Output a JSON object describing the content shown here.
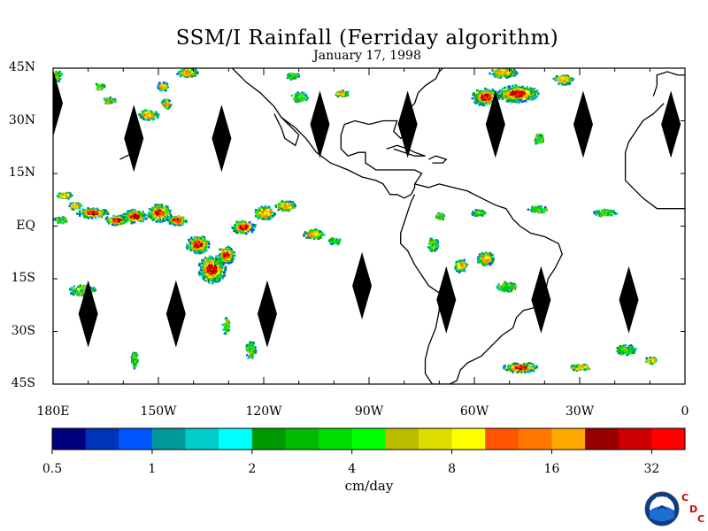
{
  "title": "SSM/I Rainfall (Ferriday algorithm)",
  "subtitle": "January 17, 1998",
  "map": {
    "lon_range": [
      180,
      360
    ],
    "lat_range": [
      -45,
      45
    ],
    "y_ticks": [
      {
        "lat": 45,
        "label": "45N"
      },
      {
        "lat": 30,
        "label": "30N"
      },
      {
        "lat": 15,
        "label": "15N"
      },
      {
        "lat": 0,
        "label": "EQ"
      },
      {
        "lat": -15,
        "label": "15S"
      },
      {
        "lat": -30,
        "label": "30S"
      },
      {
        "lat": -45,
        "label": "45S"
      }
    ],
    "x_ticks": [
      {
        "lon": 180,
        "label": "180E"
      },
      {
        "lon": 210,
        "label": "150W"
      },
      {
        "lon": 240,
        "label": "120W"
      },
      {
        "lon": 270,
        "label": "90W"
      },
      {
        "lon": 300,
        "label": "60W"
      },
      {
        "lon": 330,
        "label": "30W"
      },
      {
        "lon": 360,
        "label": "0"
      }
    ],
    "orbit_gaps_nh": [
      [
        180,
        35
      ],
      [
        203,
        25
      ],
      [
        228,
        25
      ],
      [
        256,
        29
      ],
      [
        281,
        29
      ],
      [
        306,
        29
      ],
      [
        331,
        29
      ],
      [
        356,
        29
      ]
    ],
    "orbit_gaps_sh": [
      [
        190,
        -25
      ],
      [
        215,
        -25
      ],
      [
        241,
        -25
      ],
      [
        268,
        -17
      ],
      [
        292,
        -21
      ],
      [
        319,
        -21
      ],
      [
        344,
        -21
      ]
    ],
    "rain_clusters": [
      [
        183,
        9,
        5,
        2,
        2
      ],
      [
        186,
        6,
        4,
        2,
        2
      ],
      [
        191,
        4,
        9,
        3,
        3
      ],
      [
        198,
        2,
        7,
        3,
        3
      ],
      [
        203,
        3,
        7,
        4,
        3
      ],
      [
        210,
        4,
        7,
        5,
        3
      ],
      [
        215,
        2,
        6,
        3,
        3
      ],
      [
        221,
        -5,
        7,
        5,
        3
      ],
      [
        225,
        -12,
        8,
        8,
        4
      ],
      [
        229,
        -8,
        5,
        5,
        3
      ],
      [
        234,
        0,
        7,
        4,
        3
      ],
      [
        240,
        4,
        6,
        4,
        2
      ],
      [
        246,
        6,
        6,
        3,
        2
      ],
      [
        254,
        -2,
        6,
        3,
        2
      ],
      [
        260,
        -4,
        4,
        2,
        1
      ],
      [
        188,
        -18,
        8,
        3,
        1
      ],
      [
        182,
        2,
        4,
        2,
        1
      ],
      [
        212,
        35,
        3,
        3,
        2
      ],
      [
        211,
        40,
        3,
        3,
        2
      ],
      [
        218,
        44,
        6,
        3,
        2
      ],
      [
        207,
        32,
        6,
        3,
        2
      ],
      [
        196,
        36,
        4,
        2,
        1
      ],
      [
        193,
        40,
        3,
        2,
        1
      ],
      [
        181,
        43,
        3,
        3,
        1
      ],
      [
        312,
        38,
        12,
        5,
        3
      ],
      [
        303,
        37,
        8,
        5,
        3
      ],
      [
        308,
        44,
        8,
        3,
        2
      ],
      [
        325,
        42,
        6,
        3,
        2
      ],
      [
        318,
        25,
        3,
        3,
        1
      ],
      [
        303,
        -9,
        5,
        4,
        2
      ],
      [
        296,
        -11,
        4,
        4,
        2
      ],
      [
        288,
        -5,
        3,
        4,
        1
      ],
      [
        309,
        -17,
        6,
        3,
        1
      ],
      [
        318,
        5,
        6,
        2,
        1
      ],
      [
        337,
        4,
        7,
        2,
        1
      ],
      [
        301,
        4,
        4,
        2,
        1
      ],
      [
        313,
        -40,
        10,
        3,
        3
      ],
      [
        330,
        -40,
        6,
        2,
        2
      ],
      [
        343,
        -35,
        6,
        3,
        1
      ],
      [
        350,
        -38,
        4,
        2,
        2
      ],
      [
        250,
        37,
        5,
        3,
        1
      ],
      [
        262,
        38,
        4,
        2,
        2
      ],
      [
        290,
        3,
        3,
        2,
        1
      ],
      [
        248,
        43,
        4,
        2,
        1
      ],
      [
        236,
        -35,
        3,
        5,
        1
      ],
      [
        203,
        -38,
        2,
        5,
        1
      ],
      [
        229,
        -28,
        2,
        5,
        1
      ]
    ],
    "coastlines": {
      "north_america": [
        [
          231,
          45
        ],
        [
          235,
          41
        ],
        [
          239,
          38
        ],
        [
          243,
          34
        ],
        [
          245,
          31
        ],
        [
          249,
          28
        ],
        [
          252,
          25
        ],
        [
          255,
          21
        ],
        [
          259,
          18
        ],
        [
          264,
          16
        ],
        [
          268,
          14
        ],
        [
          272,
          13
        ],
        [
          274,
          12
        ],
        [
          276,
          9
        ],
        [
          278,
          9
        ],
        [
          280,
          8
        ],
        [
          282,
          9
        ],
        [
          283,
          11
        ],
        [
          283,
          12
        ],
        [
          285,
          15
        ],
        [
          283,
          16
        ],
        [
          272,
          16
        ],
        [
          269,
          18
        ],
        [
          269,
          21
        ],
        [
          267,
          21
        ],
        [
          264,
          20
        ],
        [
          262,
          22
        ],
        [
          262,
          26
        ],
        [
          263,
          29
        ],
        [
          266,
          30
        ],
        [
          270,
          29
        ],
        [
          274,
          30
        ],
        [
          278,
          30
        ],
        [
          277,
          27
        ],
        [
          279,
          25
        ],
        [
          280,
          26
        ],
        [
          280,
          28
        ],
        [
          279,
          31
        ],
        [
          281,
          33
        ],
        [
          283,
          35
        ],
        [
          284,
          38
        ],
        [
          286,
          40
        ],
        [
          289,
          42
        ],
        [
          290,
          44
        ],
        [
          291,
          45
        ]
      ],
      "baja": [
        [
          243,
          32
        ],
        [
          245,
          28
        ],
        [
          246,
          25
        ],
        [
          249,
          23
        ],
        [
          250,
          26
        ],
        [
          247,
          29
        ],
        [
          245,
          31
        ]
      ],
      "south_america": [
        [
          283,
          12
        ],
        [
          287,
          11
        ],
        [
          290,
          12
        ],
        [
          294,
          11
        ],
        [
          298,
          10
        ],
        [
          302,
          8
        ],
        [
          306,
          6
        ],
        [
          309,
          5
        ],
        [
          311,
          2
        ],
        [
          313,
          0
        ],
        [
          316,
          -2
        ],
        [
          320,
          -3
        ],
        [
          324,
          -5
        ],
        [
          325,
          -8
        ],
        [
          323,
          -12
        ],
        [
          321,
          -15
        ],
        [
          320,
          -20
        ],
        [
          318,
          -23
        ],
        [
          314,
          -24
        ],
        [
          312,
          -26
        ],
        [
          311,
          -29
        ],
        [
          308,
          -31
        ],
        [
          306,
          -33
        ],
        [
          304,
          -35
        ],
        [
          302,
          -37
        ],
        [
          298,
          -39
        ],
        [
          296,
          -41
        ],
        [
          295,
          -44
        ],
        [
          293,
          -45
        ],
        [
          288,
          -45
        ],
        [
          286,
          -42
        ],
        [
          286,
          -38
        ],
        [
          287,
          -34
        ],
        [
          289,
          -29
        ],
        [
          290,
          -24
        ],
        [
          290,
          -19
        ],
        [
          287,
          -17
        ],
        [
          285,
          -14
        ],
        [
          283,
          -11
        ],
        [
          281,
          -7
        ],
        [
          279,
          -5
        ],
        [
          279,
          -2
        ],
        [
          280,
          1
        ],
        [
          281,
          4
        ],
        [
          282,
          7
        ],
        [
          283,
          9
        ]
      ],
      "cuba": [
        [
          275,
          22
        ],
        [
          278,
          23
        ],
        [
          281,
          22
        ],
        [
          283,
          21
        ],
        [
          286,
          20
        ],
        [
          283,
          20
        ],
        [
          280,
          21
        ],
        [
          277,
          22
        ]
      ],
      "hispaniola": [
        [
          287,
          19
        ],
        [
          289,
          20
        ],
        [
          292,
          19
        ],
        [
          291,
          18
        ],
        [
          288,
          18
        ]
      ],
      "africa": [
        [
          354,
          35
        ],
        [
          351,
          32
        ],
        [
          348,
          30
        ],
        [
          346,
          27
        ],
        [
          344,
          24
        ],
        [
          343,
          21
        ],
        [
          343,
          16
        ],
        [
          343,
          13
        ],
        [
          346,
          10
        ],
        [
          348,
          8
        ],
        [
          352,
          5
        ],
        [
          356,
          5
        ],
        [
          360,
          5
        ]
      ],
      "iberia": [
        [
          351,
          37
        ],
        [
          352,
          40
        ],
        [
          352,
          43
        ],
        [
          355,
          44
        ],
        [
          358,
          43
        ],
        [
          360,
          43
        ]
      ],
      "hawaii": [
        [
          199,
          19
        ],
        [
          201,
          20
        ],
        [
          203,
          21
        ]
      ]
    }
  },
  "colorbar": {
    "colors": [
      "#00007f",
      "#0033bb",
      "#0055ff",
      "#009999",
      "#00cccc",
      "#00ffff",
      "#009900",
      "#00bb00",
      "#00dd00",
      "#00ff00",
      "#bbbb00",
      "#dddd00",
      "#ffff00",
      "#ff5500",
      "#ff7700",
      "#ffaa00",
      "#990000",
      "#cc0000",
      "#ff0000"
    ],
    "tick_labels": [
      "0.5",
      "1",
      "2",
      "4",
      "8",
      "16",
      "32"
    ],
    "units": "cm/day"
  },
  "logo": {
    "noaa": "NOAA",
    "cdc": [
      "C",
      "D",
      "C"
    ]
  }
}
